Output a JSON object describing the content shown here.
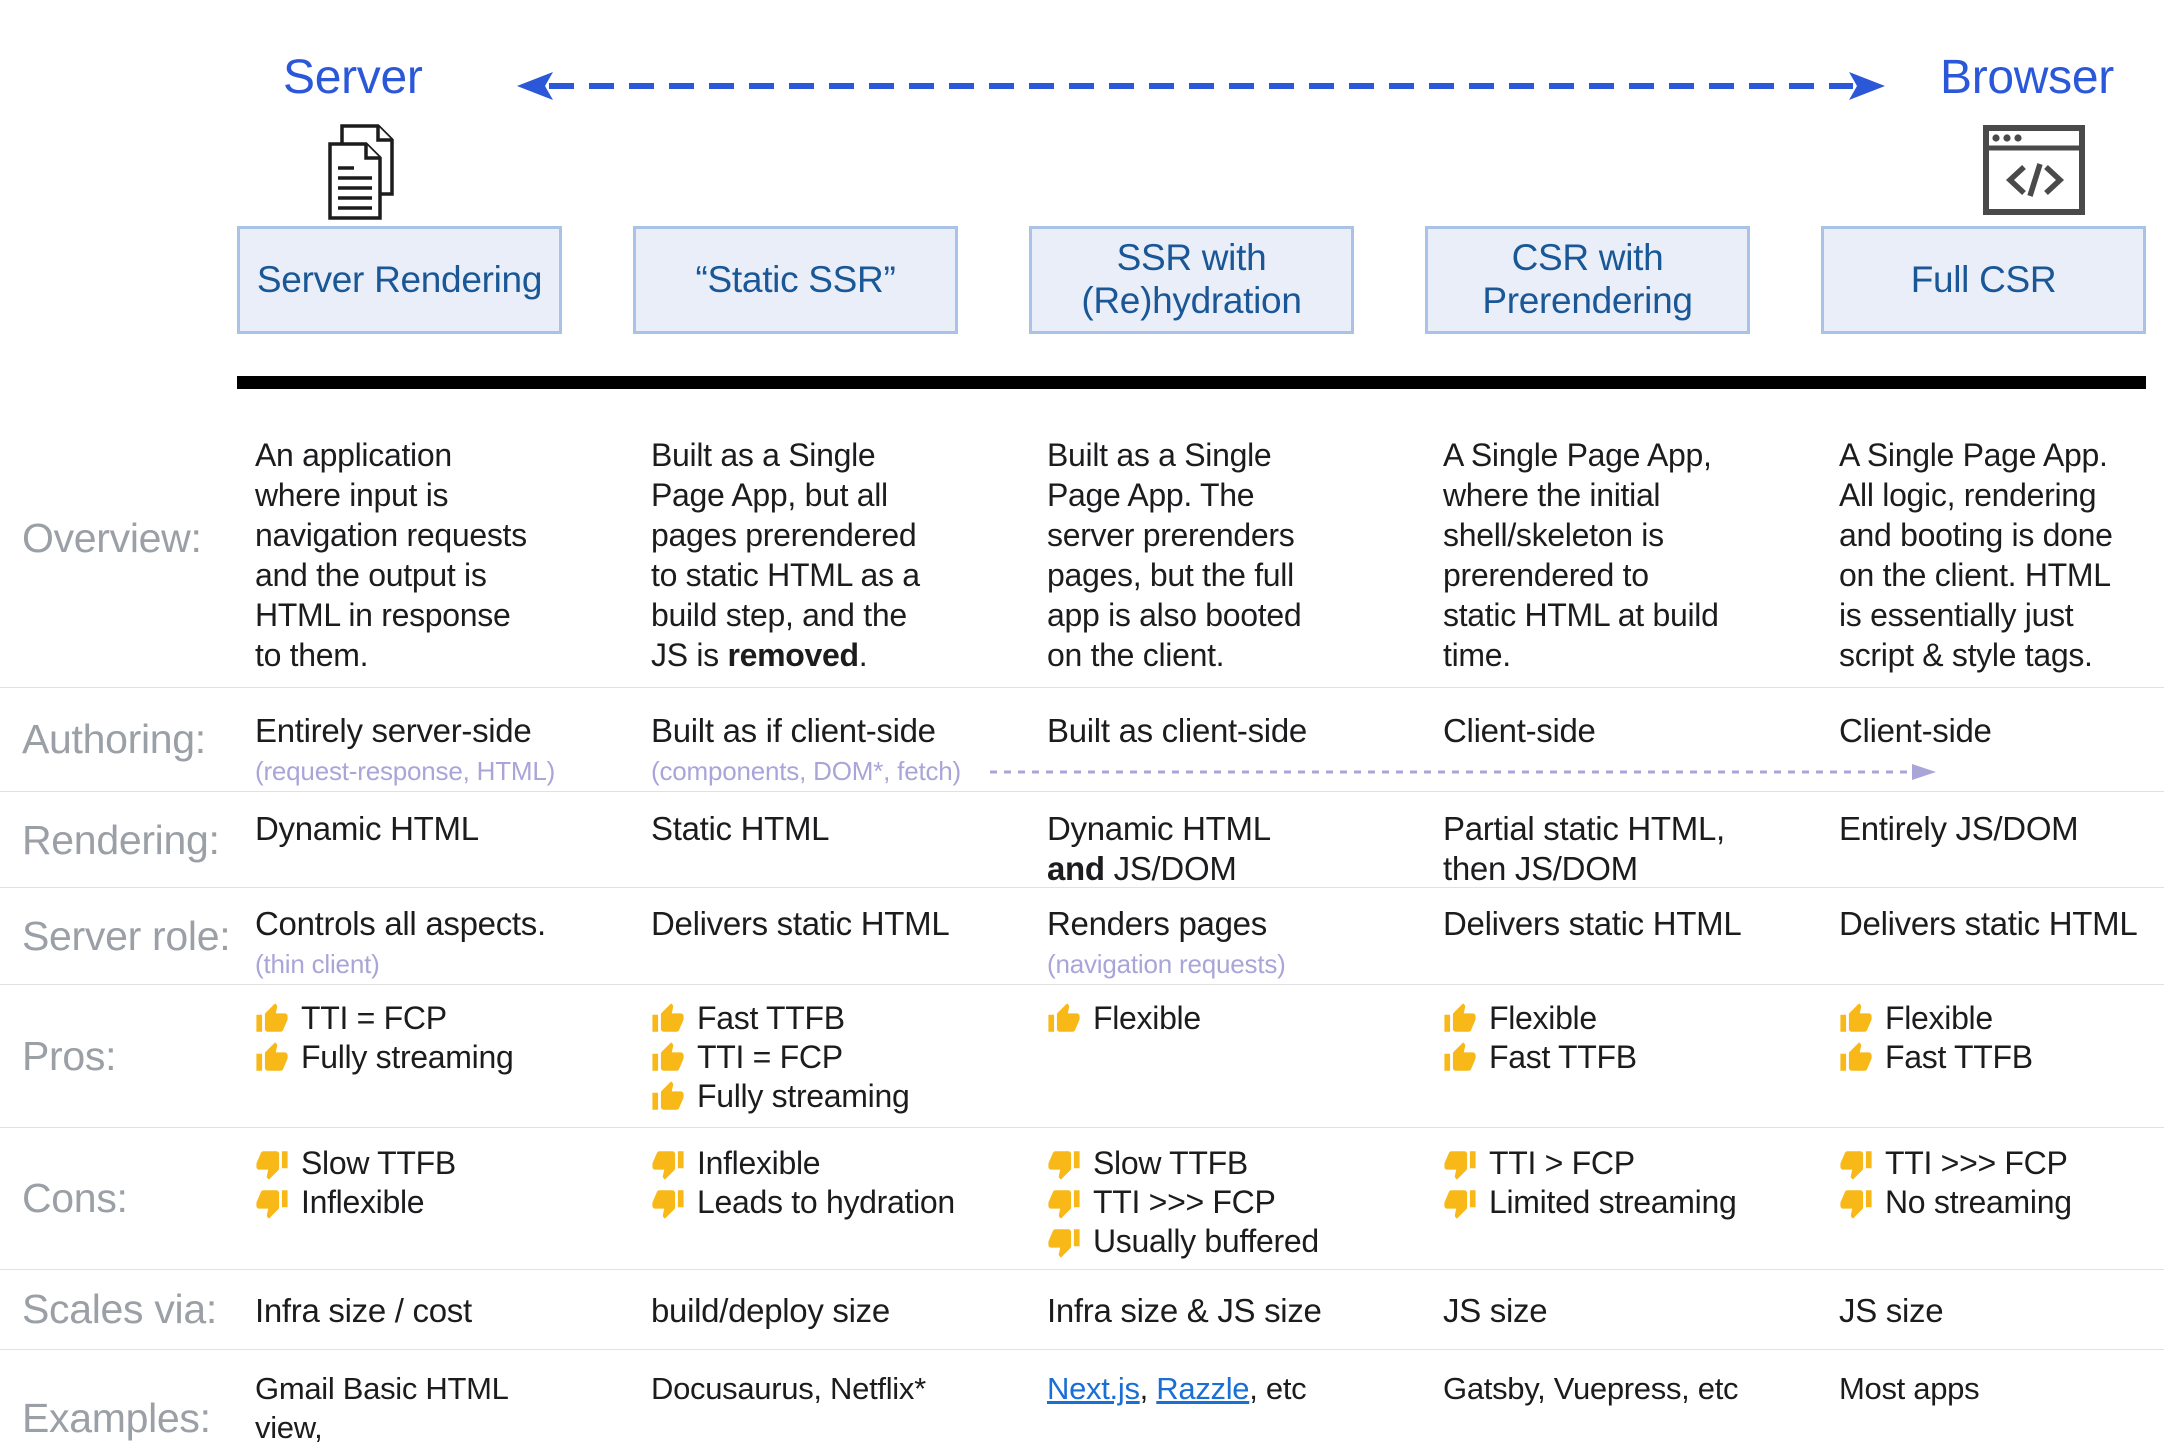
{
  "colors": {
    "accent_blue": "#2a58d8",
    "box_fill": "#e9eef9",
    "box_border": "#a9c3e6",
    "box_text": "#1a5796",
    "label_gray": "#9aa0a6",
    "subtext_purple": "#a9a5d8",
    "link_blue": "#1a6fd4",
    "thumb_gold": "#f7b818",
    "divider_black": "#000000"
  },
  "header": {
    "server_label": "Server",
    "browser_label": "Browser",
    "icons": {
      "server": "documents-icon",
      "browser": "browser-window-icon"
    },
    "columns": [
      "Server Rendering",
      "“Static SSR”",
      "SSR with\n(Re)hydration",
      "CSR with\nPrerendering",
      "Full CSR"
    ]
  },
  "rows": {
    "overview": {
      "label": "Overview:",
      "cells": [
        "An application\nwhere input is\nnavigation requests\nand the output is\nHTML in response\nto them.",
        "Built as a Single\nPage App, but all\npages prerendered\nto static HTML as a\nbuild step, and the\nJS is **removed**.",
        "Built as a Single\nPage App. The\nserver prerenders\npages, but the full\napp is also booted\non the client.",
        "A Single Page App,\nwhere the initial\nshell/skeleton is\nprerendered to\nstatic HTML at build\ntime.",
        "A Single Page App.\nAll logic, rendering\nand booting is done\non the client. HTML\nis essentially just\nscript & style tags."
      ]
    },
    "authoring": {
      "label": "Authoring:",
      "cells": [
        {
          "text": "Entirely server-side",
          "sub": "(request-response, HTML)"
        },
        {
          "text": "Built as if client-side",
          "sub": "(components, DOM*, fetch)"
        },
        "Built as client-side",
        "Client-side",
        "Client-side"
      ]
    },
    "rendering": {
      "label": "Rendering:",
      "cells": [
        "Dynamic HTML",
        "Static HTML",
        "Dynamic HTML\n**and** JS/DOM",
        "Partial static HTML,\nthen JS/DOM",
        "Entirely JS/DOM"
      ]
    },
    "server_role": {
      "label": "Server role:",
      "cells": [
        {
          "text": "Controls all aspects.",
          "sub": "(thin client)"
        },
        "Delivers static HTML",
        {
          "text": "Renders pages",
          "sub": "(navigation requests)"
        },
        "Delivers static HTML",
        "Delivers static HTML"
      ]
    },
    "pros": {
      "label": "Pros:",
      "icon": "thumb-up-icon",
      "cells": [
        [
          "TTI = FCP",
          "Fully streaming"
        ],
        [
          "Fast TTFB",
          "TTI = FCP",
          "Fully streaming"
        ],
        [
          "Flexible"
        ],
        [
          "Flexible",
          "Fast TTFB"
        ],
        [
          "Flexible",
          "Fast TTFB"
        ]
      ]
    },
    "cons": {
      "label": "Cons:",
      "icon": "thumb-down-icon",
      "cells": [
        [
          "Slow TTFB",
          "Inflexible"
        ],
        [
          "Inflexible",
          "Leads to hydration"
        ],
        [
          "Slow TTFB",
          "TTI >>> FCP",
          "Usually buffered"
        ],
        [
          "TTI > FCP",
          "Limited streaming"
        ],
        [
          "TTI >>> FCP",
          "No streaming"
        ]
      ]
    },
    "scales": {
      "label": "Scales via:",
      "cells": [
        "Infra size / cost",
        "build/deploy size",
        "Infra size & JS size",
        "JS size",
        "JS size"
      ]
    },
    "examples": {
      "label": "Examples:",
      "cells": [
        "Gmail Basic HTML view,\nHacker News",
        "Docusaurus, Netflix*",
        "[[Next.js]], [[Razzle]], etc",
        "Gatsby, Vuepress, etc",
        "Most apps"
      ]
    }
  }
}
